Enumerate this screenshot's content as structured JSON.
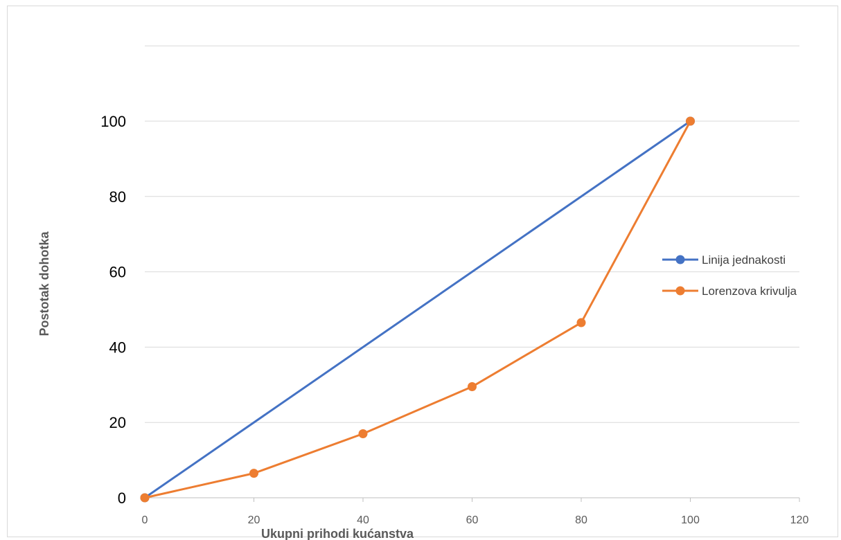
{
  "chart_data": {
    "type": "line",
    "xlabel": "Ukupni prihodi kućanstva",
    "ylabel": "Postotak dohotka",
    "xlim": [
      0,
      120
    ],
    "ylim": [
      0,
      100
    ],
    "x_ticks": [
      "0",
      "20",
      "40",
      "60",
      "80",
      "100",
      "120"
    ],
    "y_ticks": [
      "0",
      "20",
      "40",
      "60",
      "80",
      "100"
    ],
    "grid": "horizontal",
    "legend_position": "right",
    "series": [
      {
        "name": "Linija jednakosti",
        "color": "#4472c4",
        "x": [
          0,
          100
        ],
        "y": [
          0,
          100
        ]
      },
      {
        "name": "Lorenzova krivulja",
        "color": "#ed7d31",
        "x": [
          0,
          20,
          40,
          60,
          80,
          100
        ],
        "y": [
          0,
          6.5,
          17,
          29.5,
          46.5,
          100
        ]
      }
    ]
  }
}
